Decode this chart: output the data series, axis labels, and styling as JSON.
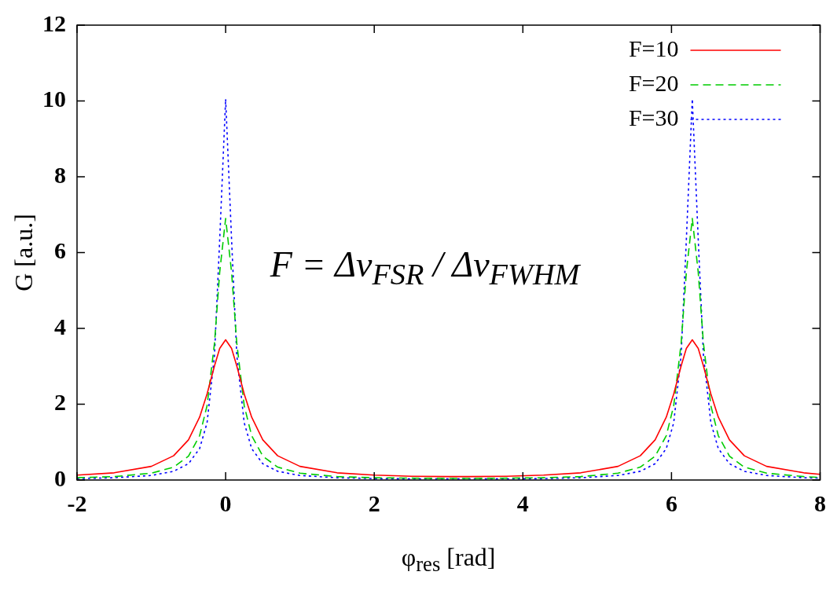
{
  "chart_data": {
    "type": "line",
    "xlabel": "φ$_{res}$ [rad]",
    "ylabel": "G [a.u.]",
    "annotations": [
      "F = Δν$_{FSR}$ / Δν$_{FWHM}$"
    ],
    "x": [
      -2,
      -1.5,
      -1,
      -0.7,
      -0.5,
      -0.35,
      -0.25,
      -0.15,
      -0.08,
      0,
      0.08,
      0.15,
      0.25,
      0.35,
      0.5,
      0.7,
      1,
      1.5,
      2,
      2.5,
      3,
      3.28,
      3.78,
      4.28,
      4.78,
      5.28,
      5.58,
      5.78,
      5.93,
      6.03,
      6.13,
      6.2,
      6.28,
      6.36,
      6.43,
      6.53,
      6.63,
      6.78,
      6.98,
      7.28,
      7.78,
      8
    ],
    "series": [
      {
        "name": "F=10",
        "color": "#ff0000",
        "line_style": "solid",
        "values": [
          0.13,
          0.19,
          0.36,
          0.64,
          1.06,
          1.66,
          2.27,
          3.01,
          3.47,
          3.7,
          3.47,
          3.01,
          2.27,
          1.66,
          1.06,
          0.64,
          0.36,
          0.19,
          0.13,
          0.1,
          0.09,
          0.09,
          0.1,
          0.13,
          0.19,
          0.36,
          0.64,
          1.06,
          1.66,
          2.27,
          3.01,
          3.47,
          3.7,
          3.47,
          3.01,
          2.27,
          1.66,
          1.06,
          0.64,
          0.36,
          0.19,
          0.15
        ]
      },
      {
        "name": "F=20",
        "color": "#00cc00",
        "line_style": "dashed",
        "values": [
          0.06,
          0.09,
          0.18,
          0.34,
          0.63,
          1.17,
          1.96,
          3.61,
          5.48,
          6.9,
          5.48,
          3.61,
          1.96,
          1.17,
          0.63,
          0.34,
          0.18,
          0.09,
          0.06,
          0.05,
          0.04,
          0.04,
          0.05,
          0.06,
          0.09,
          0.18,
          0.34,
          0.63,
          1.17,
          1.96,
          3.61,
          5.48,
          6.9,
          5.48,
          3.61,
          1.96,
          1.17,
          0.63,
          0.34,
          0.18,
          0.09,
          0.07
        ]
      },
      {
        "name": "F=30",
        "color": "#0000ff",
        "line_style": "dotted",
        "values": [
          0.04,
          0.06,
          0.12,
          0.23,
          0.43,
          0.83,
          1.51,
          3.29,
          6.34,
          10.05,
          6.34,
          3.29,
          1.51,
          0.83,
          0.43,
          0.23,
          0.12,
          0.06,
          0.04,
          0.03,
          0.03,
          0.03,
          0.03,
          0.04,
          0.06,
          0.12,
          0.23,
          0.43,
          0.83,
          1.51,
          3.29,
          6.34,
          10.05,
          6.34,
          3.29,
          1.51,
          0.83,
          0.43,
          0.23,
          0.12,
          0.06,
          0.05
        ]
      }
    ],
    "xlim": [
      -2,
      8
    ],
    "xticks": [
      -2,
      0,
      2,
      4,
      6,
      8
    ],
    "ylim": [
      0,
      12
    ],
    "yticks": [
      0,
      2,
      4,
      6,
      8,
      10,
      12
    ],
    "grid": false,
    "legend": "top right",
    "marker": "none"
  }
}
